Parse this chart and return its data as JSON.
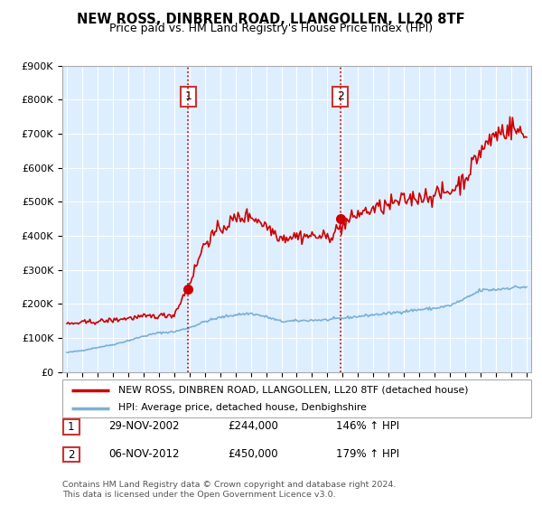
{
  "title": "NEW ROSS, DINBREN ROAD, LLANGOLLEN, LL20 8TF",
  "subtitle": "Price paid vs. HM Land Registry's House Price Index (HPI)",
  "legend_line1": "NEW ROSS, DINBREN ROAD, LLANGOLLEN, LL20 8TF (detached house)",
  "legend_line2": "HPI: Average price, detached house, Denbighshire",
  "annotation1_box": "1",
  "annotation1_date": "29-NOV-2002",
  "annotation1_price": "£244,000",
  "annotation1_hpi": "146% ↑ HPI",
  "annotation2_box": "2",
  "annotation2_date": "06-NOV-2012",
  "annotation2_price": "£450,000",
  "annotation2_hpi": "179% ↑ HPI",
  "footnote1": "Contains HM Land Registry data © Crown copyright and database right 2024.",
  "footnote2": "This data is licensed under the Open Government Licence v3.0.",
  "red_color": "#cc0000",
  "blue_color": "#7bafd4",
  "dashed_color": "#cc0000",
  "background_plot": "#ddeeff",
  "background_fig": "#ffffff",
  "ylim": [
    0,
    900000
  ],
  "yticks": [
    0,
    100000,
    200000,
    300000,
    400000,
    500000,
    600000,
    700000,
    800000,
    900000
  ],
  "ytick_labels": [
    "£0",
    "£100K",
    "£200K",
    "£300K",
    "£400K",
    "£500K",
    "£600K",
    "£700K",
    "£800K",
    "£900K"
  ],
  "point1_year": 2002.92,
  "point1_price": 244000,
  "point2_year": 2012.84,
  "point2_price": 450000,
  "xlim_left": 1994.7,
  "xlim_right": 2025.3
}
